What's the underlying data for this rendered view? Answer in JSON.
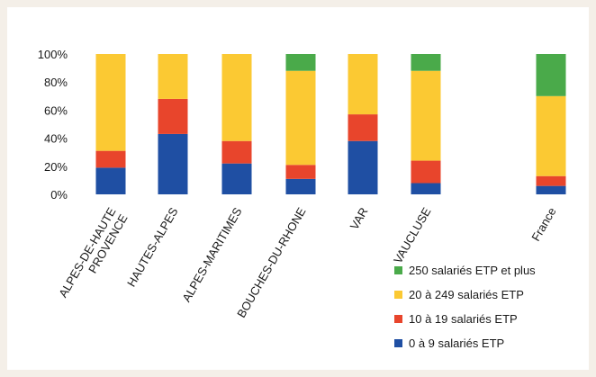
{
  "chart_data": {
    "type": "bar",
    "stacked": true,
    "percent": true,
    "categories": [
      "ALPES-DE-HAUTE\nPROVENCE",
      "HAUTES-ALPES",
      "ALPES-MARITIMES",
      "BOUCHES-DU-RHONE",
      "VAR",
      "VAUCLUSE",
      "France"
    ],
    "series": [
      {
        "name": "0 à 9 salariés ETP",
        "color": "#1f4fa3",
        "values": [
          19,
          43,
          22,
          11,
          38,
          8,
          6
        ]
      },
      {
        "name": "10 à 19 salariés ETP",
        "color": "#e8452c",
        "values": [
          12,
          25,
          16,
          10,
          19,
          16,
          7
        ]
      },
      {
        "name": "20 à 249 salariés ETP",
        "color": "#fbc933",
        "values": [
          69,
          32,
          62,
          67,
          43,
          64,
          57
        ]
      },
      {
        "name": "250 salariés ETP et plus",
        "color": "#4aaa4a",
        "values": [
          0,
          0,
          0,
          12,
          0,
          12,
          30
        ]
      }
    ],
    "y_ticks": [
      "0%",
      "20%",
      "40%",
      "60%",
      "80%",
      "100%"
    ],
    "ylim": [
      0,
      100
    ],
    "grid": false,
    "legend": "bottom-right"
  }
}
